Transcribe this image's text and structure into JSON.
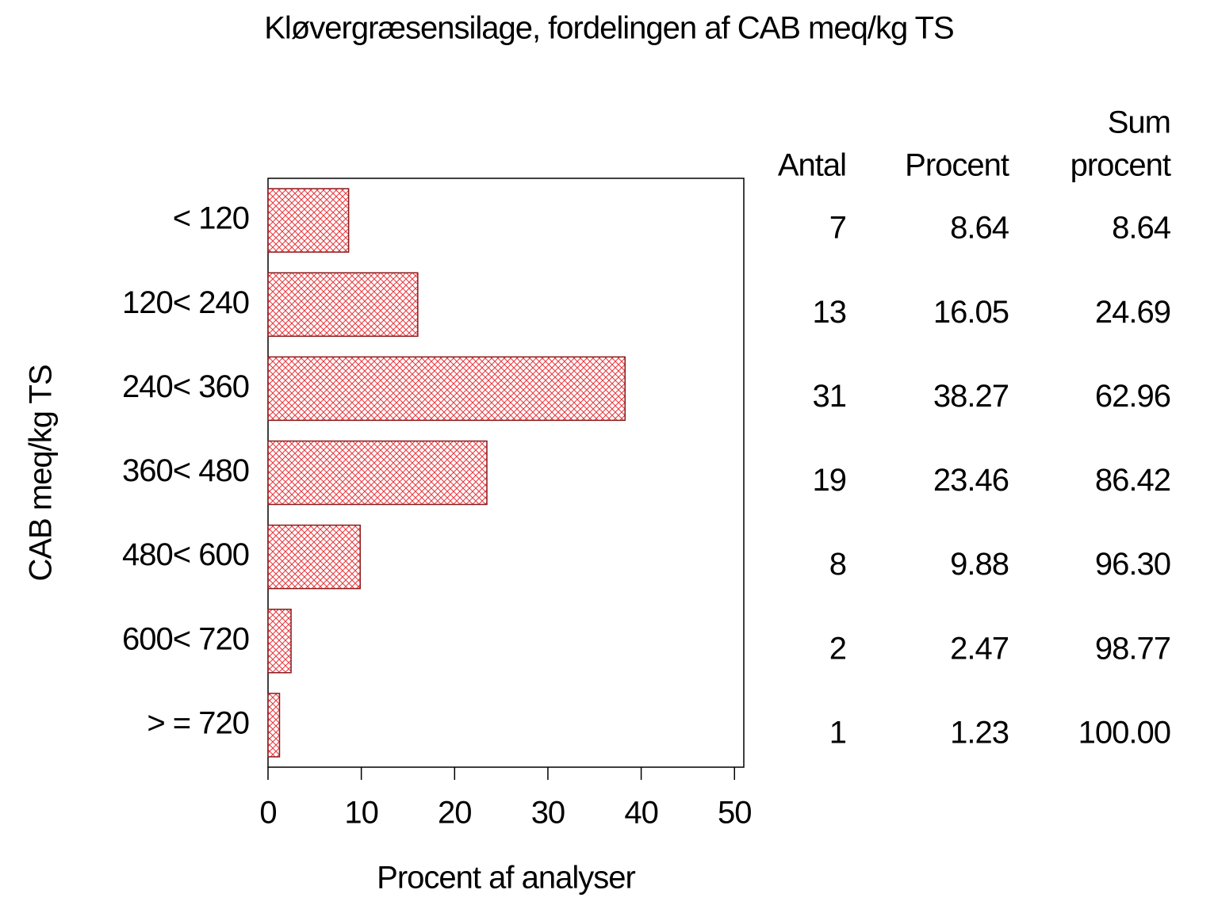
{
  "chart_data": {
    "type": "bar",
    "orientation": "horizontal",
    "title": "Kløvergræsensilage, fordelingen af CAB meq/kg TS",
    "x_label": "Procent af analyser",
    "y_label": "CAB meq/kg TS",
    "categories": [
      "< 120",
      "120< 240",
      "240< 360",
      "360< 480",
      "480< 600",
      "600< 720",
      "> = 720"
    ],
    "values": [
      8.64,
      16.05,
      38.27,
      23.46,
      9.88,
      2.47,
      1.23
    ],
    "color": "#e8353b",
    "edge_color": "#8b1a1a",
    "xlim": [
      0,
      51
    ],
    "xticks": [
      0,
      10,
      20,
      30,
      40,
      50
    ],
    "table": {
      "headers": [
        [
          "Antal"
        ],
        [
          "Procent"
        ],
        [
          "Sum",
          "procent"
        ]
      ],
      "counts": [
        7,
        13,
        31,
        19,
        8,
        2,
        1
      ],
      "cumulative": {
        "values": [
          8.64,
          24.69,
          62.96,
          86.42,
          96.3,
          98.77,
          100
        ],
        "value_labels": [
          "8.64",
          "24.69",
          "62.96",
          "86.42",
          "96.30",
          "98.77",
          "100.00"
        ]
      }
    }
  }
}
